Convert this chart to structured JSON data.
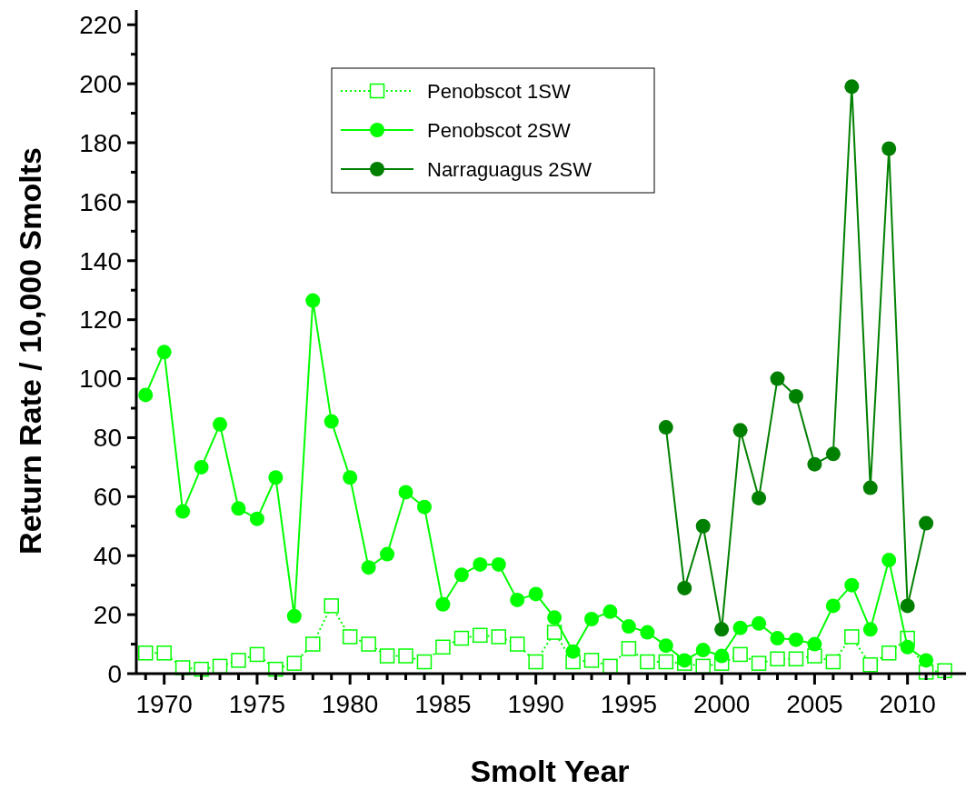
{
  "chart_data": {
    "type": "line",
    "xlabel": "Smolt Year",
    "ylabel": "Return Rate / 10,000 Smolts",
    "xlim": [
      1968.5,
      2013
    ],
    "ylim": [
      0,
      225
    ],
    "xticks": [
      {
        "value": 1969,
        "label": null
      },
      1970,
      {
        "value": 1971,
        "label": null
      },
      {
        "value": 1972,
        "label": null
      },
      {
        "value": 1973,
        "label": null
      },
      {
        "value": 1974,
        "label": null
      },
      1975,
      {
        "value": 1976,
        "label": null
      },
      {
        "value": 1977,
        "label": null
      },
      {
        "value": 1978,
        "label": null
      },
      {
        "value": 1979,
        "label": null
      },
      1980,
      {
        "value": 1981,
        "label": null
      },
      {
        "value": 1982,
        "label": null
      },
      {
        "value": 1983,
        "label": null
      },
      {
        "value": 1984,
        "label": null
      },
      1985,
      {
        "value": 1986,
        "label": null
      },
      {
        "value": 1987,
        "label": null
      },
      {
        "value": 1988,
        "label": null
      },
      {
        "value": 1989,
        "label": null
      },
      1990,
      {
        "value": 1991,
        "label": null
      },
      {
        "value": 1992,
        "label": null
      },
      {
        "value": 1993,
        "label": null
      },
      {
        "value": 1994,
        "label": null
      },
      1995,
      {
        "value": 1996,
        "label": null
      },
      {
        "value": 1997,
        "label": null
      },
      {
        "value": 1998,
        "label": null
      },
      {
        "value": 1999,
        "label": null
      },
      2000,
      {
        "value": 2001,
        "label": null
      },
      {
        "value": 2002,
        "label": null
      },
      {
        "value": 2003,
        "label": null
      },
      {
        "value": 2004,
        "label": null
      },
      2005,
      {
        "value": 2006,
        "label": null
      },
      {
        "value": 2007,
        "label": null
      },
      {
        "value": 2008,
        "label": null
      },
      {
        "value": 2009,
        "label": null
      },
      2010,
      {
        "value": 2011,
        "label": null
      },
      {
        "value": 2012,
        "label": null
      }
    ],
    "yticks": [
      0,
      {
        "value": 10,
        "label": null
      },
      20,
      {
        "value": 30,
        "label": null
      },
      40,
      {
        "value": 50,
        "label": null
      },
      60,
      {
        "value": 70,
        "label": null
      },
      80,
      {
        "value": 90,
        "label": null
      },
      100,
      {
        "value": 110,
        "label": null
      },
      120,
      {
        "value": 130,
        "label": null
      },
      140,
      {
        "value": 150,
        "label": null
      },
      160,
      {
        "value": 170,
        "label": null
      },
      180,
      {
        "value": 190,
        "label": null
      },
      200,
      {
        "value": 210,
        "label": null
      },
      220
    ],
    "grid": false,
    "legend": "top",
    "series": [
      {
        "name": "Penobscot 1SW",
        "color": "#00ff00",
        "marker": "square",
        "line_style": "dotted",
        "x": [
          1969,
          1970,
          1971,
          1972,
          1973,
          1974,
          1975,
          1976,
          1977,
          1978,
          1979,
          1980,
          1981,
          1982,
          1983,
          1984,
          1985,
          1986,
          1987,
          1988,
          1989,
          1990,
          1991,
          1992,
          1993,
          1994,
          1995,
          1996,
          1997,
          1998,
          1999,
          2000,
          2001,
          2002,
          2003,
          2004,
          2005,
          2006,
          2007,
          2008,
          2009,
          2010,
          2011,
          2012
        ],
        "values": [
          7,
          7,
          2,
          1.5,
          2.5,
          4.5,
          6.5,
          1.5,
          3.5,
          10,
          23,
          12.5,
          10,
          6,
          6,
          4,
          9,
          12,
          13,
          12.5,
          10,
          4,
          14,
          4,
          4.5,
          2.5,
          8.5,
          4,
          4,
          3.5,
          2.5,
          3.5,
          6.5,
          3.5,
          5,
          5,
          6,
          4,
          12.5,
          3,
          7,
          12,
          0.5,
          1
        ]
      },
      {
        "name": "Penobscot 2SW",
        "color": "#00ff00",
        "marker": "circle",
        "line_style": "solid",
        "x": [
          1969,
          1970,
          1971,
          1972,
          1973,
          1974,
          1975,
          1976,
          1977,
          1978,
          1979,
          1980,
          1981,
          1982,
          1983,
          1984,
          1985,
          1986,
          1987,
          1988,
          1989,
          1990,
          1991,
          1992,
          1993,
          1994,
          1995,
          1996,
          1997,
          1998,
          1999,
          2000,
          2001,
          2002,
          2003,
          2004,
          2005,
          2006,
          2007,
          2008,
          2009,
          2010,
          2011
        ],
        "values": [
          94.5,
          109,
          55,
          70,
          84.5,
          56,
          52.5,
          66.5,
          19.5,
          126.5,
          85.5,
          66.5,
          36,
          40.5,
          61.5,
          56.5,
          23.5,
          33.5,
          37,
          37,
          25,
          27,
          19,
          7.5,
          18.5,
          21,
          16,
          14,
          9.5,
          4.5,
          8,
          6,
          15.5,
          17,
          12,
          11.5,
          10,
          23,
          30,
          15,
          38.5,
          9,
          4.5
        ]
      },
      {
        "name": "Narraguagus 2SW",
        "color": "#008000",
        "marker": "circle",
        "line_style": "solid",
        "x": [
          1997,
          1998,
          1999,
          2000,
          2001,
          2002,
          2003,
          2004,
          2005,
          2006,
          2007,
          2008,
          2009,
          2010,
          2011
        ],
        "values": [
          83.5,
          29,
          50,
          15,
          82.5,
          59.5,
          100,
          94,
          71,
          74.5,
          199,
          63,
          178,
          23,
          51
        ]
      }
    ]
  }
}
